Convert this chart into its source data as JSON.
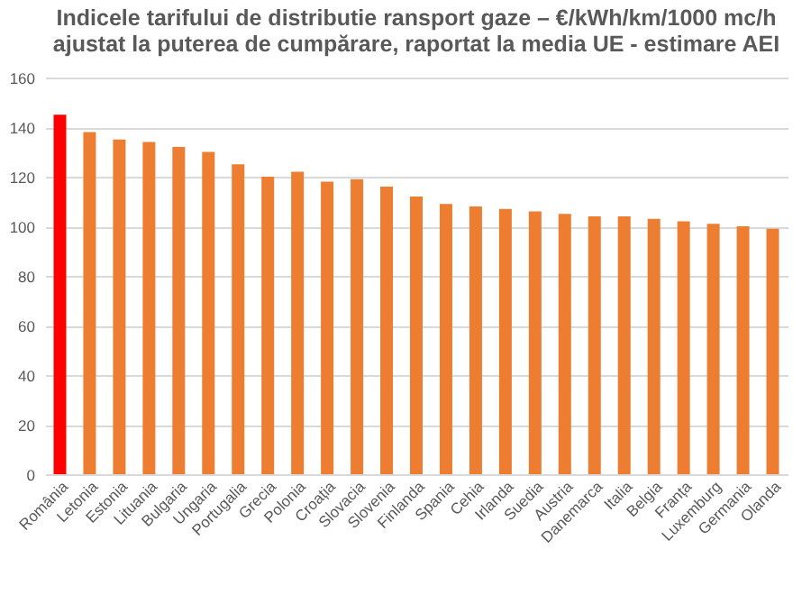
{
  "chart_data": {
    "type": "bar",
    "title": [
      "Indicele tarifului de distributie ransport gaze – €/kWh/km/1000 mc/h",
      "ajustat la puterea de cumpărare, raportat la media UE - estimare AEI"
    ],
    "categories": [
      "România",
      "Letonia",
      "Estonia",
      "Lituania",
      "Bulgaria",
      "Ungaria",
      "Portugalia",
      "Grecia",
      "Polonia",
      "Croația",
      "Slovacia",
      "Slovenia",
      "Finlanda",
      "Spania",
      "Cehia",
      "Irlanda",
      "Suedia",
      "Austria",
      "Danemarca",
      "Italia",
      "Belgia",
      "Franța",
      "Luxemburg",
      "Germania",
      "Olanda"
    ],
    "values": [
      145,
      138,
      135,
      134,
      132,
      130,
      125,
      120,
      122,
      118,
      119,
      116,
      112,
      109,
      108,
      107,
      106,
      105,
      104,
      104,
      103,
      102,
      101,
      100,
      99
    ],
    "colors": [
      "#ff0000",
      "#ed7d31",
      "#ed7d31",
      "#ed7d31",
      "#ed7d31",
      "#ed7d31",
      "#ed7d31",
      "#ed7d31",
      "#ed7d31",
      "#ed7d31",
      "#ed7d31",
      "#ed7d31",
      "#ed7d31",
      "#ed7d31",
      "#ed7d31",
      "#ed7d31",
      "#ed7d31",
      "#ed7d31",
      "#ed7d31",
      "#ed7d31",
      "#ed7d31",
      "#ed7d31",
      "#ed7d31",
      "#ed7d31",
      "#ed7d31"
    ],
    "ylim": [
      0,
      160
    ],
    "yticks": [
      0,
      20,
      40,
      60,
      80,
      100,
      120,
      140,
      160
    ],
    "grid": "y"
  }
}
